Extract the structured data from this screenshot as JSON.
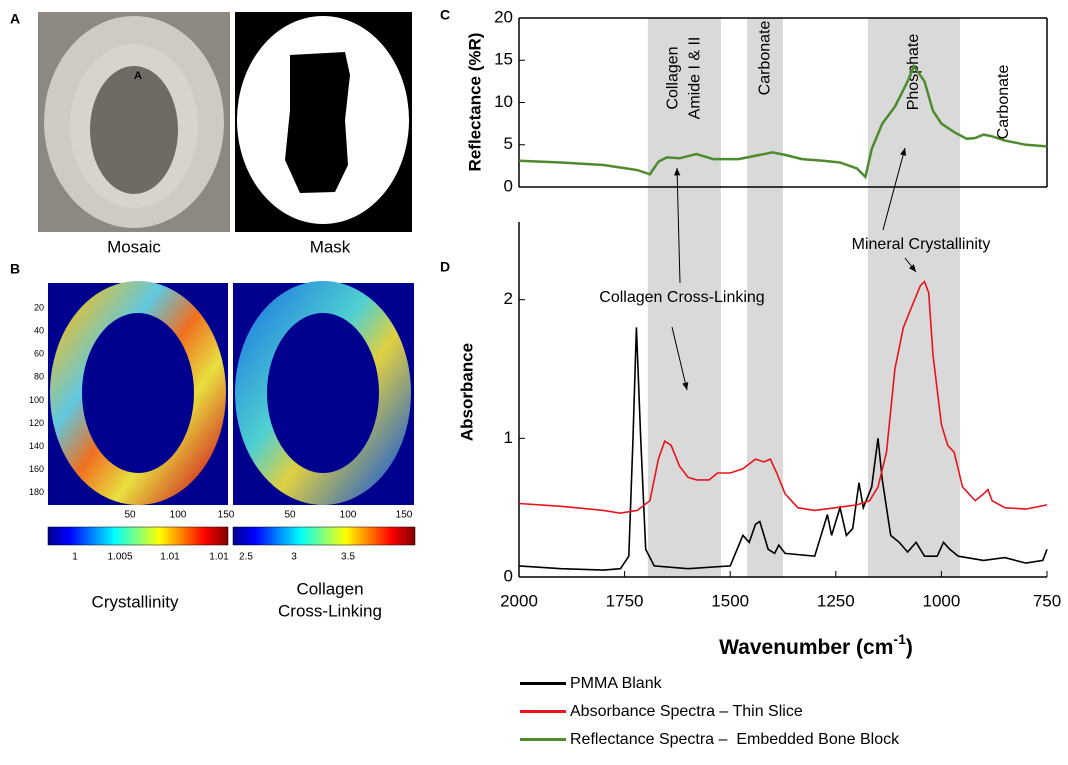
{
  "panels": {
    "a": {
      "letter": "A",
      "marker": "A",
      "captions": [
        "Mosaic",
        "Mask"
      ]
    },
    "b": {
      "letter": "B",
      "yticks": [
        20,
        40,
        60,
        80,
        100,
        120,
        140,
        160,
        180
      ],
      "maps": [
        {
          "xticks": [
            50,
            100,
            150
          ],
          "colorbar_ticks": [
            1,
            1.005,
            1.01,
            {
              "value": 1.015,
              "label": "1.01"
            }
          ],
          "caption": [
            "Crystallinity"
          ]
        },
        {
          "xticks": [
            50,
            100,
            150
          ],
          "colorbar_ticks": [
            2.5,
            3,
            3.5
          ],
          "caption": [
            "Collagen",
            "Cross-Linking"
          ]
        }
      ]
    }
  },
  "chart_data": [
    {
      "type": "line",
      "letter": "C",
      "ylabel": "Reflectance (%R)",
      "xlim": [
        2000,
        750
      ],
      "ylim": [
        0,
        20
      ],
      "yticks": [
        0,
        5,
        10,
        15,
        20
      ],
      "band_color": "#d9d9d9",
      "bands": [
        {
          "from": 1695,
          "to": 1522,
          "label": [
            "Collagen",
            "Amide I & II"
          ]
        },
        {
          "from": 1460,
          "to": 1375,
          "label": [
            "Carbonate"
          ]
        },
        {
          "from": 1174,
          "to": 956,
          "label": [
            "Phosphate"
          ]
        }
      ],
      "annotations": [
        "Carbonate"
      ],
      "series": [
        {
          "name": "Reflectance Spectra –  Embedded Bone Block",
          "color": "#4e8a2e",
          "x": [
            2000,
            1900,
            1800,
            1720,
            1690,
            1670,
            1650,
            1620,
            1580,
            1540,
            1480,
            1430,
            1400,
            1370,
            1330,
            1280,
            1240,
            1200,
            1180,
            1165,
            1140,
            1110,
            1080,
            1065,
            1040,
            1020,
            1000,
            970,
            940,
            920,
            900,
            880,
            850,
            800,
            750
          ],
          "values": [
            3.1,
            2.9,
            2.6,
            2.0,
            1.5,
            3.0,
            3.5,
            3.4,
            3.9,
            3.3,
            3.3,
            3.8,
            4.1,
            3.8,
            3.3,
            3.1,
            2.9,
            2.2,
            1.2,
            4.5,
            7.5,
            9.5,
            12.5,
            14.3,
            12.5,
            9.0,
            7.5,
            6.5,
            5.7,
            5.8,
            6.2,
            6.0,
            5.5,
            5.0,
            4.8
          ]
        }
      ]
    },
    {
      "type": "line",
      "letter": "D",
      "ylabel": "Absorbance",
      "xlabel": [
        "Wavenumber (cm",
        "-1",
        ")"
      ],
      "xlim": [
        2000,
        750
      ],
      "ylim": [
        0,
        2.56
      ],
      "yticks": [
        0,
        1,
        2
      ],
      "xticks": [
        2000,
        1750,
        1500,
        1250,
        1000,
        750
      ],
      "annotations": [
        "Collagen Cross-Linking",
        "Mineral Crystallinity"
      ],
      "series": [
        {
          "name": "PMMA Blank",
          "color": "#000000",
          "x": [
            2000,
            1900,
            1800,
            1760,
            1740,
            1730,
            1722,
            1712,
            1700,
            1680,
            1600,
            1500,
            1470,
            1455,
            1440,
            1430,
            1420,
            1410,
            1395,
            1385,
            1370,
            1300,
            1270,
            1260,
            1240,
            1225,
            1210,
            1195,
            1185,
            1165,
            1150,
            1140,
            1120,
            1100,
            1080,
            1060,
            1040,
            1010,
            995,
            980,
            960,
            900,
            850,
            800,
            760,
            750
          ],
          "values": [
            0.08,
            0.06,
            0.05,
            0.06,
            0.15,
            1.0,
            1.8,
            1.0,
            0.2,
            0.08,
            0.06,
            0.08,
            0.3,
            0.25,
            0.38,
            0.4,
            0.3,
            0.2,
            0.17,
            0.23,
            0.17,
            0.15,
            0.45,
            0.3,
            0.5,
            0.3,
            0.35,
            0.68,
            0.5,
            0.65,
            1.0,
            0.7,
            0.3,
            0.25,
            0.18,
            0.25,
            0.15,
            0.15,
            0.25,
            0.2,
            0.15,
            0.12,
            0.14,
            0.1,
            0.12,
            0.2
          ]
        },
        {
          "name": "Absorbance Spectra – Thin Slice",
          "color": "#e8141b",
          "x": [
            2000,
            1900,
            1800,
            1760,
            1720,
            1690,
            1670,
            1655,
            1640,
            1620,
            1600,
            1580,
            1550,
            1530,
            1500,
            1470,
            1440,
            1420,
            1405,
            1390,
            1370,
            1340,
            1300,
            1250,
            1200,
            1170,
            1150,
            1130,
            1110,
            1090,
            1070,
            1050,
            1040,
            1030,
            1020,
            1000,
            985,
            970,
            950,
            920,
            900,
            890,
            880,
            850,
            800,
            750
          ],
          "values": [
            0.53,
            0.51,
            0.48,
            0.46,
            0.48,
            0.55,
            0.85,
            0.98,
            0.95,
            0.8,
            0.72,
            0.7,
            0.7,
            0.75,
            0.75,
            0.78,
            0.85,
            0.83,
            0.85,
            0.75,
            0.6,
            0.5,
            0.48,
            0.5,
            0.52,
            0.55,
            0.65,
            0.9,
            1.5,
            1.8,
            1.95,
            2.1,
            2.13,
            2.05,
            1.6,
            1.1,
            0.95,
            0.9,
            0.65,
            0.55,
            0.6,
            0.63,
            0.55,
            0.5,
            0.49,
            0.52
          ]
        }
      ]
    }
  ]
}
